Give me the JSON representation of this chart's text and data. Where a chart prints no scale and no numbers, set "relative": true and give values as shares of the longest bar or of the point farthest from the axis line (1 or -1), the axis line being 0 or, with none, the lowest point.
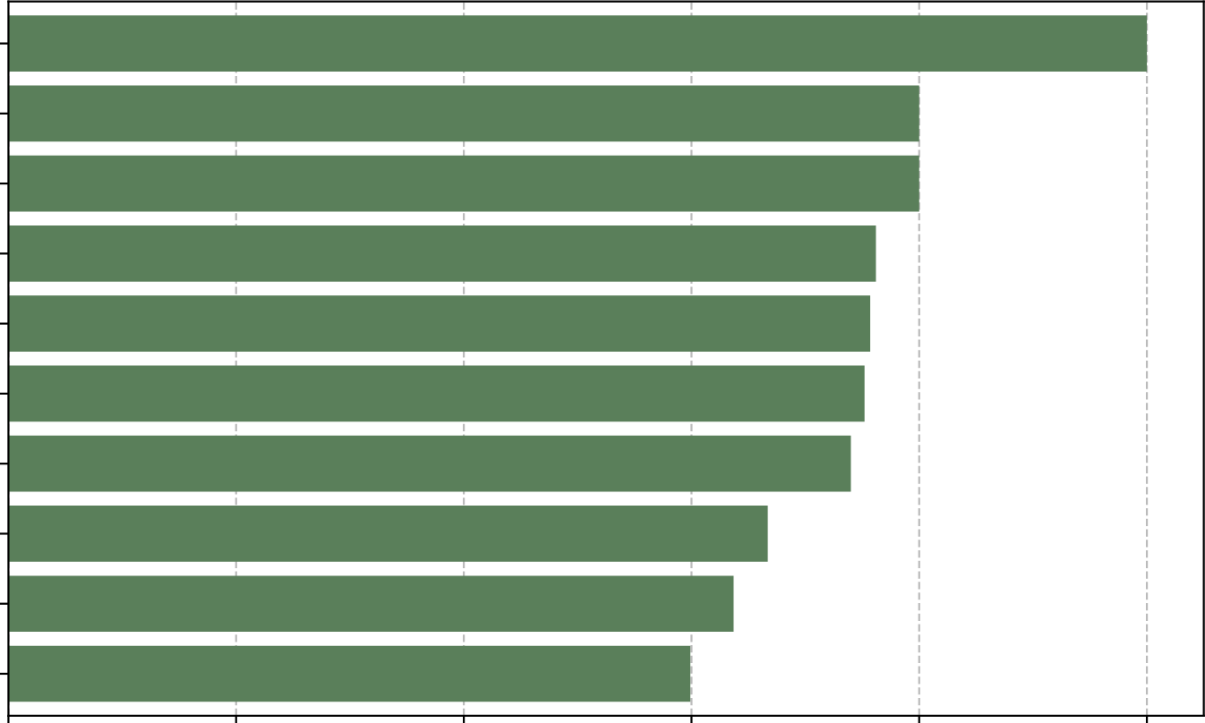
{
  "chart_data": {
    "type": "bar",
    "orientation": "horizontal",
    "relative": true,
    "categories": [
      null,
      null,
      null,
      null,
      null,
      null,
      null,
      null,
      null,
      null
    ],
    "values": [
      1,
      0.8,
      0.8,
      0.762,
      0.757,
      0.752,
      0.74,
      0.667,
      0.637,
      0.599
    ],
    "color": "#5a7f5a",
    "grid": "x"
  }
}
